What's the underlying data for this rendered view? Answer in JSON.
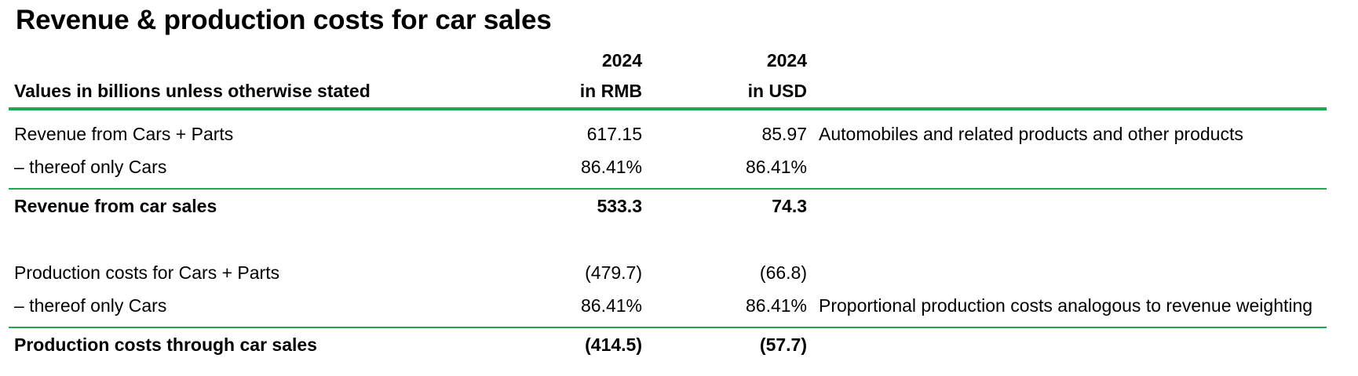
{
  "title": "Revenue & production costs for car sales",
  "header": {
    "description": "Values in billions unless otherwise stated",
    "col_rmb_year": "2024",
    "col_rmb_unit": "in RMB",
    "col_usd_year": "2024",
    "col_usd_unit": "in USD"
  },
  "rows": [
    {
      "label": "Revenue from Cars + Parts",
      "rmb": "617.15",
      "usd": "85.97",
      "note": "Automobiles and related products and other products"
    },
    {
      "label": "– thereof only Cars",
      "rmb": "86.41%",
      "usd": "86.41%",
      "note": ""
    },
    {
      "label": "Revenue from car sales",
      "rmb": "533.3",
      "usd": "74.3",
      "note": ""
    },
    {
      "label": "Production costs for Cars + Parts",
      "rmb": "(479.7)",
      "usd": "(66.8)",
      "note": ""
    },
    {
      "label": "– thereof only Cars",
      "rmb": "86.41%",
      "usd": "86.41%",
      "note": "Proportional production costs analogous to revenue weighting"
    },
    {
      "label": "Production costs through car sales",
      "rmb": "(414.5)",
      "usd": "(57.7)",
      "note": ""
    }
  ],
  "colors": {
    "rule": "#1aaa4f"
  }
}
